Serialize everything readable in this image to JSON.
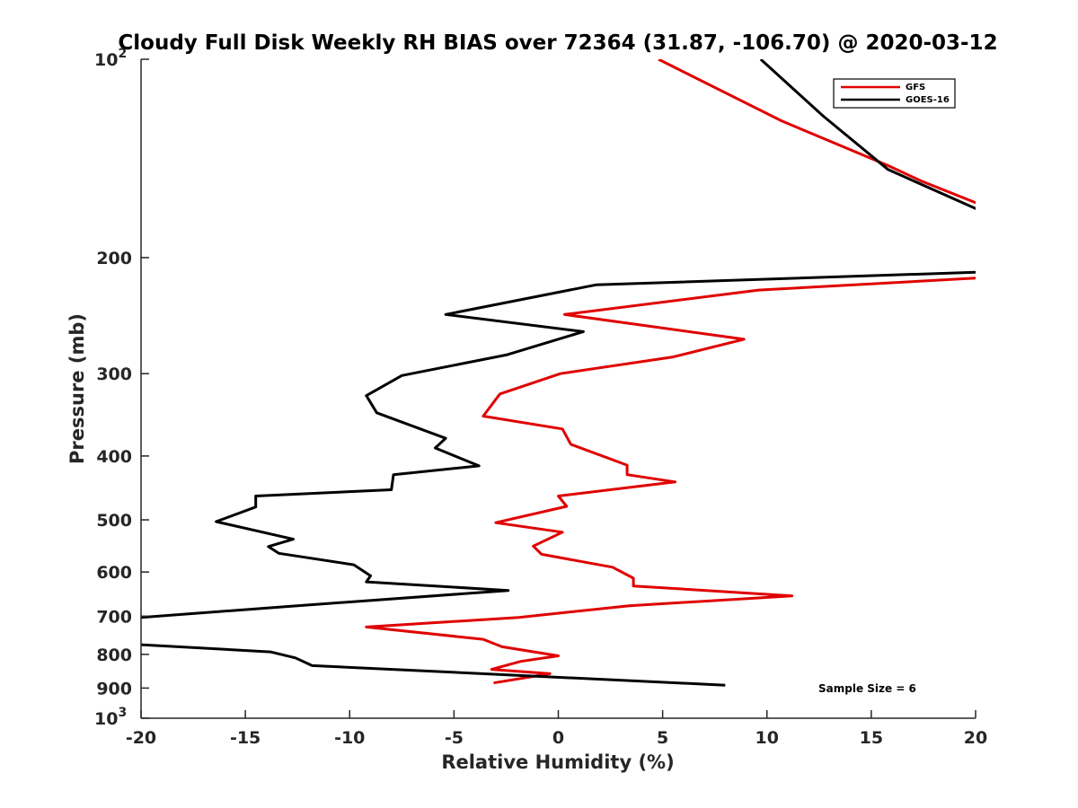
{
  "chart_data": {
    "type": "line",
    "title": "Cloudy Full Disk Weekly RH BIAS over 72364 (31.87, -106.70) @ 2020-03-12",
    "xlabel": "Relative Humidity (%)",
    "ylabel": "Pressure (mb)",
    "xlim": [
      -20,
      20
    ],
    "ylim": [
      100,
      1000
    ],
    "y_scale": "log",
    "y_reversed": true,
    "grid": false,
    "legend_position": "top-right",
    "x_ticks": [
      "-20",
      "-15",
      "-10",
      "-5",
      "0",
      "5",
      "10",
      "15",
      "20"
    ],
    "y_ticks": [
      {
        "value": 100,
        "label": "10",
        "sup": "2"
      },
      {
        "value": 200,
        "label": "200"
      },
      {
        "value": 300,
        "label": "300"
      },
      {
        "value": 400,
        "label": "400"
      },
      {
        "value": 500,
        "label": "500"
      },
      {
        "value": 600,
        "label": "600"
      },
      {
        "value": 700,
        "label": "700"
      },
      {
        "value": 800,
        "label": "800"
      },
      {
        "value": 900,
        "label": "900"
      },
      {
        "value": 1000,
        "label": "10",
        "sup": "3"
      }
    ],
    "annotation": "Sample Size = 6",
    "series": [
      {
        "name": "GFS",
        "color": "#e00000",
        "x": [
          4.8,
          10.7,
          15.8,
          17.4,
          21.0,
          null,
          21.0,
          9.6,
          0.3,
          8.9,
          5.5,
          0.1,
          -2.8,
          -3.6,
          0.2,
          0.6,
          3.3,
          3.3,
          5.6,
          0.0,
          0.4,
          -3.0,
          0.2,
          -1.2,
          -0.8,
          2.6,
          3.6,
          3.6,
          11.2,
          3.4,
          -1.9,
          -9.2,
          -3.6,
          -2.7,
          0.0,
          -1.8,
          -3.2,
          -0.4,
          -3.1
        ],
        "y": [
          100,
          124,
          145,
          153,
          170,
          null,
          214,
          224,
          244,
          266,
          283,
          300,
          322,
          348,
          364,
          384,
          413,
          427,
          438,
          460,
          477,
          505,
          522,
          548,
          564,
          590,
          613,
          630,
          652,
          675,
          703,
          727,
          759,
          779,
          804,
          820,
          843,
          856,
          884
        ]
      },
      {
        "name": "GOES-16",
        "color": "#000000",
        "x": [
          9.7,
          12.7,
          15.8,
          21.0,
          null,
          21.0,
          1.8,
          -5.4,
          1.2,
          -2.5,
          -7.5,
          -9.2,
          -8.7,
          -5.4,
          -5.9,
          -3.8,
          -7.9,
          -8.0,
          -14.5,
          -14.5,
          -16.4,
          -12.7,
          -13.9,
          -13.4,
          -9.8,
          -9.0,
          -9.2,
          -2.4,
          -12.8,
          -20.5,
          null,
          -20.5,
          -13.8,
          -12.6,
          -11.8,
          8.0
        ],
        "y": [
          100,
          122,
          147,
          174,
          null,
          210,
          220,
          244,
          259,
          281,
          302,
          324,
          344,
          376,
          389,
          414,
          427,
          450,
          460,
          478,
          503,
          535,
          549,
          562,
          585,
          608,
          621,
          640,
          676,
          705,
          null,
          772,
          793,
          810,
          832,
          891
        ]
      }
    ]
  }
}
